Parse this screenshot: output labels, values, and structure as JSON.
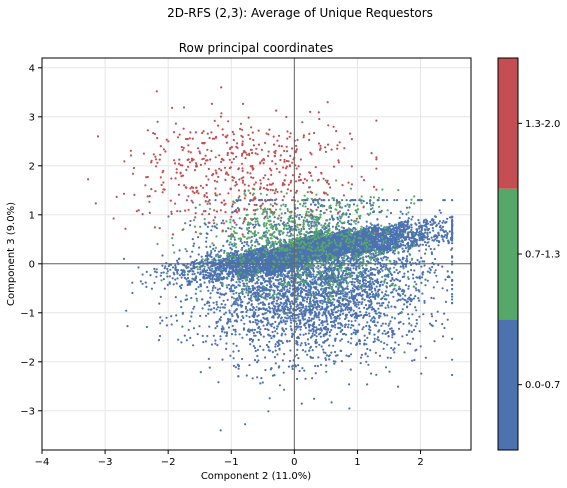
{
  "suptitle": "2D-RFS (2,3): Average of Unique Requestors",
  "chart_data": {
    "type": "scatter",
    "title": "Row principal coordinates",
    "xlabel": "Component 2 (11.0%)",
    "ylabel": "Component 3 (9.0%)",
    "xlim": [
      -4,
      2.8
    ],
    "ylim": [
      -3.8,
      4.2
    ],
    "xticks": [
      "−4",
      "−3",
      "−2",
      "−1",
      "0",
      "1",
      "2"
    ],
    "yticks": [
      "−3",
      "−2",
      "−1",
      "0",
      "1",
      "2",
      "3",
      "4"
    ],
    "grid": true,
    "reference_lines": {
      "x": 0,
      "y": 0
    },
    "colorbar": {
      "segments": [
        {
          "label": "0.0-0.7",
          "color": "#4c72b0"
        },
        {
          "label": "0.7-1.3",
          "color": "#55a868"
        },
        {
          "label": "1.3-2.0",
          "color": "#c44e52"
        }
      ],
      "placement": "right"
    },
    "series": [
      {
        "label": "0.0-0.7",
        "color": "#4c72b0",
        "point_count": 9000,
        "distribution": "dense elliptical cloud centered near (0.3, -0.4), spanning x from about -2.7 to 2.5 and y from about -3.4 to 1.3, with diagonal streak structure along the upper edge"
      },
      {
        "label": "0.7-1.3",
        "color": "#55a868",
        "point_count": 900,
        "distribution": "band centered near (0.1, 0.4), spanning x from about -2.3 to 1.9 and y from about -1.0 to 1.7"
      },
      {
        "label": "1.3-2.0",
        "color": "#c44e52",
        "point_count": 550,
        "distribution": "scattered cloud centered near (-0.9, 1.9), spanning x from about -3.7 to 1.3 and y from about 0.6 to 3.6"
      }
    ]
  }
}
